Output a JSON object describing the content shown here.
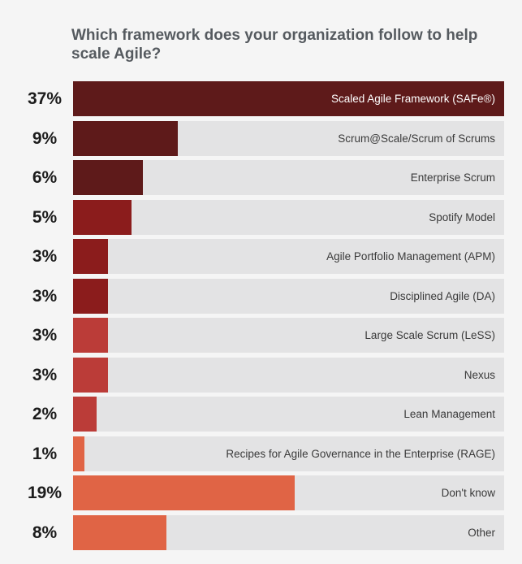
{
  "title": "Which framework does your organization follow to help scale Agile?",
  "chart_data": {
    "type": "bar",
    "orientation": "horizontal",
    "title": "Which framework does your organization follow to help scale Agile?",
    "xlim": [
      0,
      37
    ],
    "categories": [
      "Scaled Agile Framework (SAFe®)",
      "Scrum@Scale/Scrum of Scrums",
      "Enterprise Scrum",
      "Spotify Model",
      "Agile Portfolio Management (APM)",
      "Disciplined Agile (DA)",
      "Large Scale Scrum (LeSS)",
      "Nexus",
      "Lean Management",
      "Recipes for Agile Governance in the Enterprise (RAGE)",
      "Don't know",
      "Other"
    ],
    "values": [
      37,
      9,
      6,
      5,
      3,
      3,
      3,
      3,
      2,
      1,
      19,
      8
    ],
    "value_labels": [
      "37%",
      "9%",
      "6%",
      "5%",
      "3%",
      "3%",
      "3%",
      "3%",
      "2%",
      "1%",
      "19%",
      "8%"
    ],
    "bar_colors": [
      "#5e1a1a",
      "#5e1a1a",
      "#5e1a1a",
      "#8b1c1c",
      "#8b1c1c",
      "#8b1c1c",
      "#bb3c38",
      "#bb3c38",
      "#bb3c38",
      "#e06445",
      "#e06445",
      "#e06445"
    ]
  }
}
